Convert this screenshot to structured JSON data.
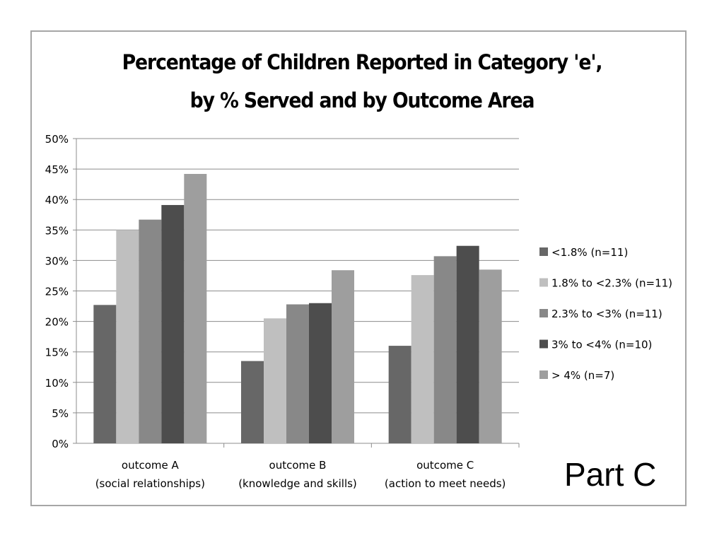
{
  "chart_data": {
    "type": "bar",
    "title_lines": [
      "Percentage of Children Reported in Category 'e',",
      "by % Served and by Outcome Area"
    ],
    "categories": [
      [
        "outcome A",
        "(social relationships)"
      ],
      [
        "outcome B",
        "(knowledge and skills)"
      ],
      [
        "outcome C",
        "(action to meet needs)"
      ]
    ],
    "y_ticks": [
      "0%",
      "5%",
      "10%",
      "15%",
      "20%",
      "25%",
      "30%",
      "35%",
      "40%",
      "45%",
      "50%"
    ],
    "ylim": [
      0,
      50
    ],
    "y_step": 5,
    "grid": true,
    "legend_position": "right",
    "series": [
      {
        "name": "<1.8% (n=11)",
        "color": "#676767",
        "values": [
          22.7,
          13.5,
          16.0
        ]
      },
      {
        "name": "1.8% to <2.3% (n=11)",
        "color": "#bfbfbf",
        "values": [
          35.0,
          20.5,
          27.6
        ]
      },
      {
        "name": "2.3% to <3% (n=11)",
        "color": "#888888",
        "values": [
          36.7,
          22.8,
          30.7
        ]
      },
      {
        "name": "3% to <4% (n=10)",
        "color": "#4d4d4d",
        "values": [
          39.1,
          23.0,
          32.4
        ]
      },
      {
        "name": "> 4% (n=7)",
        "color": "#9e9e9e",
        "values": [
          44.2,
          28.4,
          28.5
        ]
      }
    ]
  },
  "annotation": "Part C"
}
